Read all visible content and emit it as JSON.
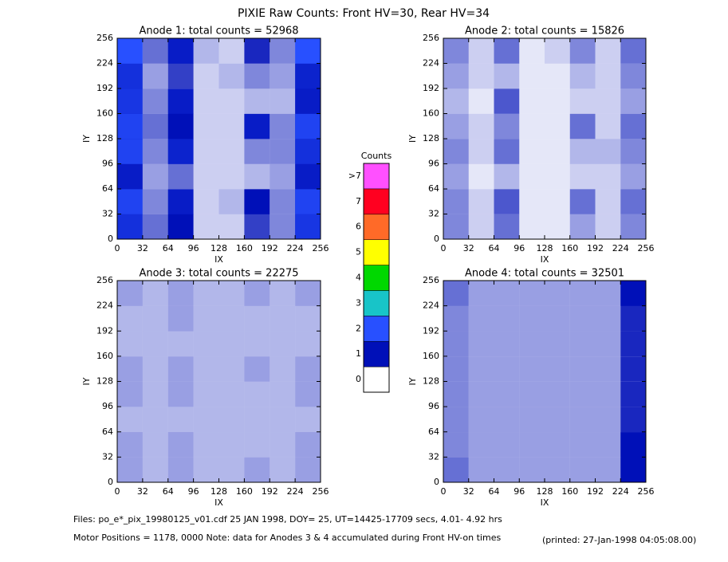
{
  "chart_data": {
    "type": "heatmap",
    "title": "PIXIE Raw Counts:  Front HV=30, Rear HV=34",
    "colorbar": {
      "title": "Counts",
      "labels": [
        "0",
        "1",
        "2",
        "3",
        "4",
        "5",
        "6",
        "7",
        ">7"
      ],
      "colors": [
        "#ffffff",
        "#0010b8",
        "#2850ff",
        "#18c4c8",
        "#00d800",
        "#ffff00",
        "#ff6a28",
        "#ff0020",
        "#ff50ff"
      ]
    },
    "panels": [
      {
        "title": "Anode 1: total counts = 52968",
        "xlabel": "IX",
        "ylabel": "IY",
        "xlim": [
          0,
          256
        ],
        "ylim": [
          0,
          256
        ],
        "xticks": [
          0,
          32,
          64,
          96,
          128,
          160,
          192,
          224,
          256
        ],
        "yticks": [
          0,
          32,
          64,
          96,
          128,
          160,
          192,
          224,
          256
        ],
        "z": [
          [
            1.5,
            0.6,
            1.0,
            0.2,
            0.2,
            0.8,
            0.5,
            1.6
          ],
          [
            1.8,
            0.5,
            1.2,
            0.2,
            0.3,
            1.0,
            0.5,
            1.8
          ],
          [
            1.2,
            0.4,
            0.6,
            0.2,
            0.2,
            0.3,
            0.4,
            1.2
          ],
          [
            1.8,
            0.5,
            1.3,
            0.2,
            0.2,
            0.5,
            0.5,
            1.5
          ],
          [
            1.8,
            0.6,
            1.0,
            0.2,
            0.2,
            1.2,
            0.5,
            1.8
          ],
          [
            1.6,
            0.5,
            1.2,
            0.2,
            0.2,
            0.3,
            0.3,
            1.2
          ],
          [
            1.5,
            0.4,
            0.8,
            0.2,
            0.3,
            0.5,
            0.4,
            1.3
          ],
          [
            2.0,
            0.6,
            1.2,
            0.3,
            0.2,
            0.9,
            0.5,
            2.0
          ]
        ]
      },
      {
        "title": "Anode 2: total counts = 15826",
        "xlabel": "IX",
        "ylabel": "IY",
        "xlim": [
          0,
          256
        ],
        "ylim": [
          0,
          256
        ],
        "xticks": [
          0,
          32,
          64,
          96,
          128,
          160,
          192,
          224,
          256
        ],
        "yticks": [
          0,
          32,
          64,
          96,
          128,
          160,
          192,
          224,
          256
        ],
        "z": [
          [
            0.5,
            0.2,
            0.6,
            0.1,
            0.1,
            0.4,
            0.2,
            0.5
          ],
          [
            0.5,
            0.2,
            0.7,
            0.1,
            0.1,
            0.6,
            0.2,
            0.6
          ],
          [
            0.4,
            0.1,
            0.3,
            0.1,
            0.1,
            0.2,
            0.2,
            0.4
          ],
          [
            0.5,
            0.2,
            0.6,
            0.1,
            0.1,
            0.3,
            0.3,
            0.5
          ],
          [
            0.4,
            0.2,
            0.5,
            0.1,
            0.1,
            0.6,
            0.2,
            0.6
          ],
          [
            0.3,
            0.1,
            0.7,
            0.1,
            0.1,
            0.2,
            0.2,
            0.4
          ],
          [
            0.4,
            0.2,
            0.3,
            0.1,
            0.1,
            0.3,
            0.2,
            0.5
          ],
          [
            0.5,
            0.2,
            0.6,
            0.1,
            0.2,
            0.5,
            0.2,
            0.6
          ]
        ]
      },
      {
        "title": "Anode 3: total counts = 22275",
        "xlabel": "IX",
        "ylabel": "IY",
        "xlim": [
          0,
          256
        ],
        "ylim": [
          0,
          256
        ],
        "xticks": [
          0,
          32,
          64,
          96,
          128,
          160,
          192,
          224,
          256
        ],
        "yticks": [
          0,
          32,
          64,
          96,
          128,
          160,
          192,
          224,
          256
        ],
        "z": [
          [
            0.4,
            0.3,
            0.4,
            0.3,
            0.3,
            0.4,
            0.3,
            0.4
          ],
          [
            0.4,
            0.3,
            0.4,
            0.3,
            0.3,
            0.3,
            0.3,
            0.4
          ],
          [
            0.3,
            0.3,
            0.3,
            0.3,
            0.3,
            0.3,
            0.3,
            0.3
          ],
          [
            0.4,
            0.3,
            0.4,
            0.3,
            0.3,
            0.3,
            0.3,
            0.4
          ],
          [
            0.4,
            0.3,
            0.4,
            0.3,
            0.3,
            0.4,
            0.3,
            0.4
          ],
          [
            0.3,
            0.3,
            0.3,
            0.3,
            0.3,
            0.3,
            0.3,
            0.3
          ],
          [
            0.3,
            0.3,
            0.4,
            0.3,
            0.3,
            0.3,
            0.3,
            0.3
          ],
          [
            0.4,
            0.3,
            0.4,
            0.3,
            0.3,
            0.4,
            0.3,
            0.4
          ]
        ]
      },
      {
        "title": "Anode 4: total counts = 32501",
        "xlabel": "IX",
        "ylabel": "IY",
        "xlim": [
          0,
          256
        ],
        "ylim": [
          0,
          256
        ],
        "xticks": [
          0,
          32,
          64,
          96,
          128,
          160,
          192,
          224,
          256
        ],
        "yticks": [
          0,
          32,
          64,
          96,
          128,
          160,
          192,
          224,
          256
        ],
        "z": [
          [
            0.6,
            0.4,
            0.4,
            0.4,
            0.4,
            0.4,
            0.4,
            1.0
          ],
          [
            0.5,
            0.4,
            0.4,
            0.4,
            0.4,
            0.4,
            0.4,
            1.0
          ],
          [
            0.5,
            0.4,
            0.4,
            0.4,
            0.4,
            0.4,
            0.4,
            0.9
          ],
          [
            0.5,
            0.4,
            0.4,
            0.4,
            0.4,
            0.4,
            0.4,
            0.9
          ],
          [
            0.5,
            0.4,
            0.4,
            0.4,
            0.4,
            0.4,
            0.4,
            0.9
          ],
          [
            0.5,
            0.4,
            0.4,
            0.4,
            0.4,
            0.4,
            0.4,
            0.9
          ],
          [
            0.5,
            0.4,
            0.4,
            0.4,
            0.4,
            0.4,
            0.4,
            0.9
          ],
          [
            0.6,
            0.4,
            0.4,
            0.4,
            0.4,
            0.4,
            0.4,
            1.0
          ]
        ]
      }
    ],
    "footer": [
      "Files: po_e*_pix_19980125_v01.cdf   25 JAN 1998, DOY= 25, UT=14425-17709 secs,  4.01- 4.92 hrs",
      "Motor Positions = 1178, 0000   Note: data for Anodes 3 & 4 accumulated during Front HV-on times"
    ],
    "printed": "(printed: 27-Jan-1998 04:05:08.00)"
  }
}
